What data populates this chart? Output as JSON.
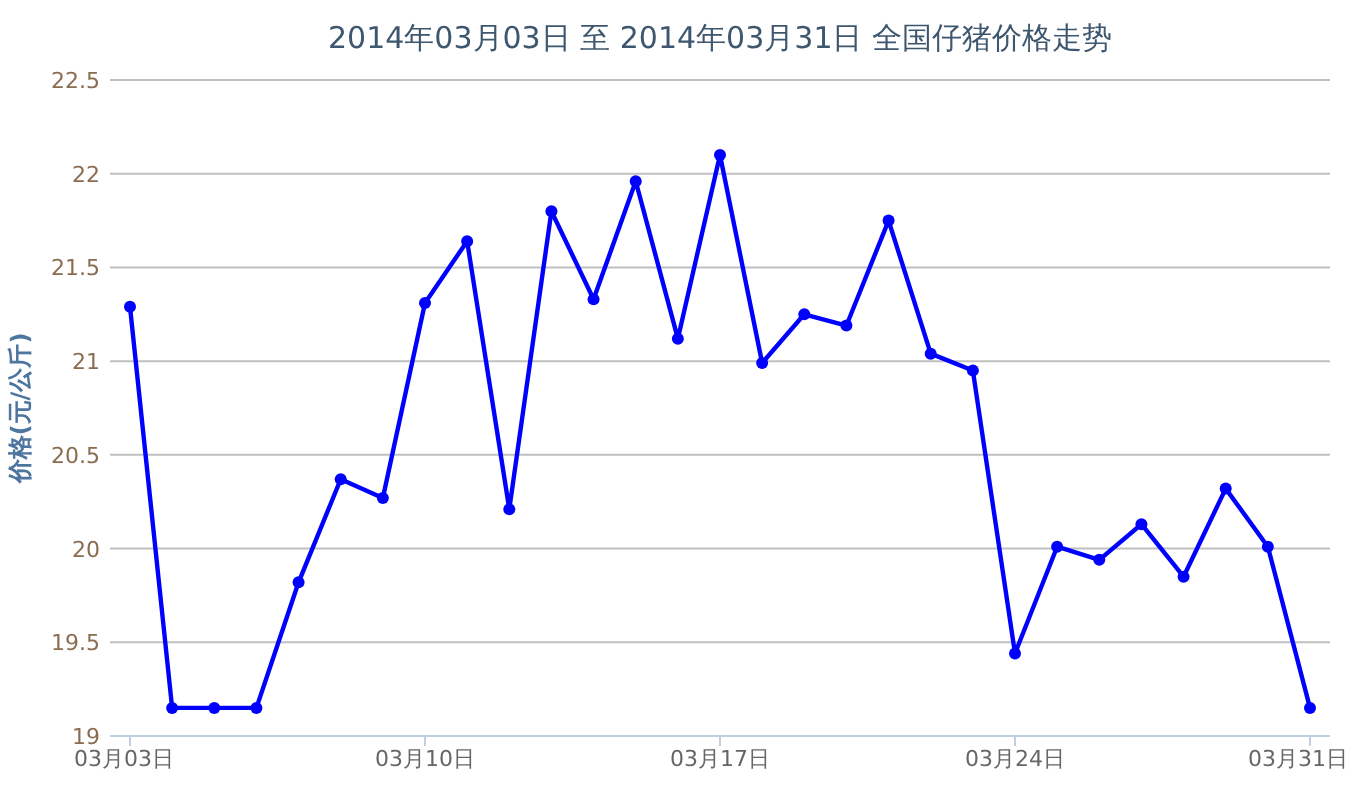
{
  "chart_data": {
    "type": "line",
    "title": "2014年03月03日 至 2014年03月31日 全国仔猪价格走势",
    "ylabel": "价格(元/公斤)",
    "categories": [
      "03月03日",
      null,
      null,
      null,
      null,
      null,
      null,
      "03月10日",
      null,
      null,
      null,
      null,
      null,
      null,
      "03月17日",
      null,
      null,
      null,
      null,
      null,
      null,
      "03月24日",
      null,
      null,
      null,
      null,
      null,
      null,
      "03月31日"
    ],
    "series": [
      {
        "color": "#0000ff",
        "values": [
          21.29,
          19.15,
          19.15,
          19.15,
          19.82,
          20.37,
          20.27,
          21.31,
          21.64,
          20.21,
          21.8,
          21.33,
          21.96,
          21.12,
          22.1,
          20.99,
          21.25,
          21.19,
          21.75,
          21.04,
          20.95,
          19.44,
          20.01,
          19.94,
          20.13,
          19.85,
          20.32,
          20.01,
          19.15
        ]
      }
    ],
    "ylim": [
      19,
      22.5
    ],
    "yticks": [
      19,
      19.5,
      20,
      20.5,
      21,
      21.5,
      22,
      22.5
    ],
    "grid": "y",
    "marker": "circle",
    "line_style": "solid"
  }
}
